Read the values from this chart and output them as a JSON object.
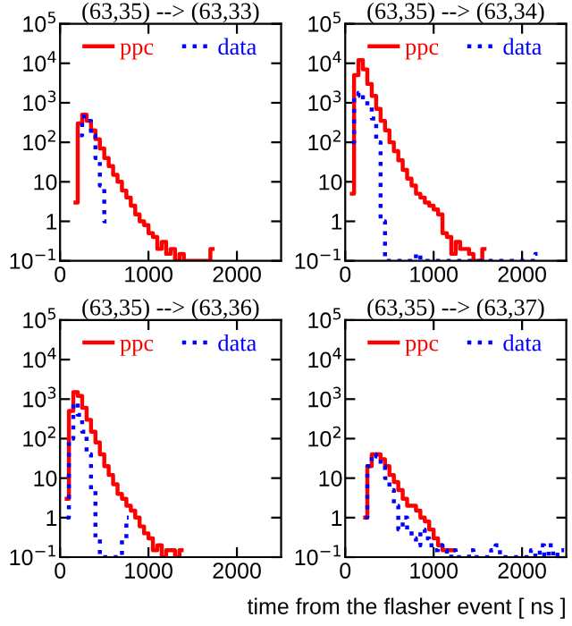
{
  "chart_data": [
    {
      "type": "step",
      "title": "(63,35) --> (63,33)",
      "legend": "top",
      "log": "y",
      "xlim": [
        0,
        2500
      ],
      "xticks": [
        0,
        1000,
        2000
      ],
      "ylim": [
        0.1,
        100000
      ],
      "yticks": [
        {
          "value": 0.1,
          "label": "10$^{−1}$"
        },
        1,
        10,
        {
          "value": 100,
          "label": "10$^{2}$"
        },
        {
          "value": 1000,
          "label": "10$^{3}$"
        },
        {
          "value": 10000,
          "label": "10$^{4}$"
        },
        {
          "value": 100000,
          "label": "10$^{5}$"
        }
      ],
      "series": [
        {
          "name": "ppc",
          "color": "#ff0000",
          "line_style": "solid",
          "x": [
            175,
            225,
            275,
            325,
            375,
            425,
            475,
            525,
            575,
            625,
            675,
            725,
            775,
            825,
            875,
            925,
            975,
            1025,
            1075,
            1125,
            1175,
            1225,
            1275,
            1325,
            1375,
            1425,
            1475,
            1525,
            1575,
            1625,
            1675,
            1725
          ],
          "values": [
            3,
            300,
            500,
            350,
            200,
            120,
            70,
            40,
            25,
            15,
            10,
            6,
            4,
            2.5,
            1.5,
            1,
            0.8,
            0.5,
            0.4,
            0.2,
            0.3,
            0.15,
            0.2,
            0.1,
            0.15,
            0.1,
            0.1,
            0.1,
            0.1,
            0.1,
            0.1,
            0.2
          ]
        },
        {
          "name": "data",
          "color": "#0000ff",
          "line_style": "dotted",
          "x": [
            225,
            275,
            325,
            375,
            425,
            475,
            525
          ],
          "values": [
            150,
            450,
            350,
            150,
            40,
            8,
            1
          ]
        }
      ]
    },
    {
      "type": "step",
      "title": "(63,35) --> (63,34)",
      "legend": "top",
      "log": "y",
      "xlim": [
        0,
        2500
      ],
      "xticks": [
        0,
        1000,
        2000
      ],
      "ylim": [
        0.1,
        100000
      ],
      "yticks": [
        {
          "value": 0.1,
          "label": "10$^{−1}$"
        },
        1,
        10,
        {
          "value": 100,
          "label": "10$^{2}$"
        },
        {
          "value": 1000,
          "label": "10$^{3}$"
        },
        {
          "value": 10000,
          "label": "10$^{4}$"
        },
        {
          "value": 100000,
          "label": "10$^{5}$"
        }
      ],
      "series": [
        {
          "name": "ppc",
          "color": "#ff0000",
          "line_style": "solid",
          "x": [
            75,
            125,
            175,
            225,
            275,
            325,
            375,
            425,
            475,
            525,
            575,
            625,
            675,
            725,
            775,
            825,
            875,
            925,
            975,
            1025,
            1075,
            1125,
            1175,
            1225,
            1275,
            1325,
            1375,
            1425,
            1475,
            1525,
            1575
          ],
          "values": [
            5,
            5000,
            12000,
            7000,
            3000,
            1500,
            700,
            350,
            200,
            100,
            60,
            35,
            20,
            12,
            8,
            5,
            4,
            3,
            2.5,
            2,
            1.5,
            0.5,
            0.4,
            0.15,
            0.3,
            0.2,
            0.2,
            0.15,
            0.1,
            0.1,
            0.2
          ]
        },
        {
          "name": "data",
          "color": "#0000ff",
          "line_style": "dotted",
          "x": [
            75,
            125,
            175,
            225,
            275,
            325,
            375,
            425,
            475,
            525,
            575,
            625,
            675,
            725,
            775,
            825,
            875,
            925,
            975,
            1025,
            1075,
            1125,
            1175,
            1225,
            1275,
            1325,
            1375,
            1425,
            1475,
            1525,
            1575,
            1625,
            1675,
            1725,
            1775,
            1825,
            1875,
            1925,
            1975,
            2025,
            2075,
            2125,
            2175
          ],
          "values": [
            100,
            1500,
            1800,
            1200,
            800,
            400,
            100,
            1,
            0.1,
            0.1,
            0.1,
            0.1,
            0.1,
            0.1,
            0.1,
            0.15,
            0.1,
            0.1,
            0.1,
            0.1,
            0.1,
            0.1,
            0.1,
            0.1,
            0.1,
            0.1,
            0.1,
            0.1,
            0.1,
            0.1,
            0.1,
            0.1,
            0.1,
            0.1,
            0.1,
            0.1,
            0.1,
            0.1,
            0.1,
            0.1,
            0.1,
            0.1,
            0.15
          ]
        }
      ]
    },
    {
      "type": "step",
      "title": "(63,35) --> (63,36)",
      "legend": "top",
      "log": "y",
      "xlim": [
        0,
        2500
      ],
      "xticks": [
        0,
        1000,
        2000
      ],
      "ylim": [
        0.1,
        100000
      ],
      "yticks": [
        {
          "value": 0.1,
          "label": "10$^{−1}$"
        },
        1,
        10,
        {
          "value": 100,
          "label": "10$^{2}$"
        },
        {
          "value": 1000,
          "label": "10$^{3}$"
        },
        {
          "value": 10000,
          "label": "10$^{4}$"
        },
        {
          "value": 100000,
          "label": "10$^{5}$"
        }
      ],
      "series": [
        {
          "name": "ppc",
          "color": "#ff0000",
          "line_style": "solid",
          "x": [
            75,
            125,
            175,
            225,
            275,
            325,
            375,
            425,
            475,
            525,
            575,
            625,
            675,
            725,
            775,
            825,
            875,
            925,
            975,
            1025,
            1075,
            1125,
            1175,
            1225,
            1275,
            1325,
            1375
          ],
          "values": [
            3,
            500,
            1500,
            1200,
            600,
            300,
            150,
            80,
            40,
            20,
            12,
            7,
            4,
            3,
            2,
            1.5,
            1,
            0.6,
            0.4,
            0.3,
            0.15,
            0.2,
            0.1,
            0.15,
            0.15,
            0.1,
            0.15
          ]
        },
        {
          "name": "data",
          "color": "#0000ff",
          "line_style": "dotted",
          "x": [
            75,
            125,
            175,
            225,
            275,
            325,
            375,
            425,
            475,
            525,
            575,
            625,
            675,
            725,
            775
          ],
          "values": [
            1,
            100,
            800,
            400,
            150,
            40,
            5,
            0.3,
            0.1,
            0.1,
            0.1,
            0.1,
            0.1,
            0.3,
            1
          ]
        }
      ]
    },
    {
      "type": "step",
      "title": "(63,35) --> (63,37)",
      "xlabel": "time from the flasher event [ ns ]",
      "legend": "top",
      "log": "y",
      "xlim": [
        0,
        2500
      ],
      "xticks": [
        0,
        1000,
        2000
      ],
      "ylim": [
        0.1,
        100000
      ],
      "yticks": [
        {
          "value": 0.1,
          "label": "10$^{−1}$"
        },
        1,
        10,
        {
          "value": 100,
          "label": "10$^{2}$"
        },
        {
          "value": 1000,
          "label": "10$^{3}$"
        },
        {
          "value": 10000,
          "label": "10$^{4}$"
        },
        {
          "value": 100000,
          "label": "10$^{5}$"
        }
      ],
      "series": [
        {
          "name": "ppc",
          "color": "#ff0000",
          "line_style": "solid",
          "x": [
            225,
            275,
            325,
            375,
            425,
            475,
            525,
            575,
            625,
            675,
            725,
            775,
            825,
            875,
            925,
            975,
            1025,
            1075,
            1125,
            1175,
            1225
          ],
          "values": [
            1,
            20,
            40,
            40,
            30,
            20,
            12,
            8,
            5,
            3,
            2,
            2,
            1.5,
            1,
            0.8,
            0.5,
            0.3,
            0.2,
            0.15,
            0.15,
            0.15
          ]
        },
        {
          "name": "data",
          "color": "#0000ff",
          "line_style": "dotted",
          "x": [
            225,
            275,
            325,
            375,
            425,
            475,
            525,
            575,
            625,
            675,
            725,
            775,
            825,
            875,
            925,
            975,
            1025,
            1075,
            1125,
            1175,
            1225,
            1275,
            1325,
            1375,
            1425,
            1475,
            1525,
            1575,
            1625,
            1675,
            1725,
            1775,
            1825,
            1875,
            1925,
            1975,
            2025,
            2075,
            2125,
            2175,
            2225,
            2275,
            2325,
            2375,
            2425,
            2475
          ],
          "values": [
            1,
            20,
            40,
            35,
            20,
            10,
            5,
            2,
            0.5,
            1,
            0.5,
            0.3,
            0.2,
            0.5,
            0.3,
            0.2,
            0.15,
            0.2,
            0.15,
            0.1,
            0.15,
            0.1,
            0.1,
            0.1,
            0.15,
            0.1,
            0.1,
            0.1,
            0.1,
            0.15,
            0.2,
            0.1,
            0.1,
            0.1,
            0.1,
            0.1,
            0.1,
            0.1,
            0.15,
            0.1,
            0.2,
            0.1,
            0.2,
            0.1,
            0.15,
            0.15
          ]
        }
      ]
    }
  ]
}
